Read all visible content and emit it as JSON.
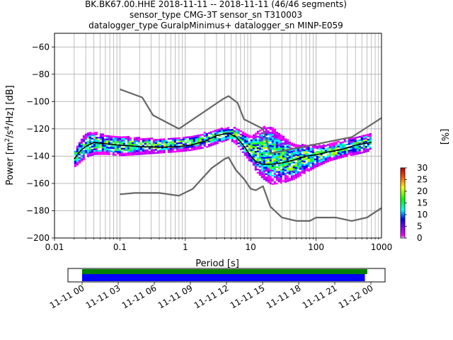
{
  "header": {
    "line1": "BK.BK67.00.HHE   2018-11-11 -- 2018-11-11  (46/46 segments)",
    "line2": "sensor_type CMG-3T sensor_sn T310003",
    "line3": "datalogger_type GuralpMinimus+ datalogger_sn MINP-E059"
  },
  "chart_data": [
    {
      "type": "heatmap",
      "title": "BK.BK67.00.HHE   2018-11-11 -- 2018-11-11  (46/46 segments)",
      "xlabel": "Period [s]",
      "ylabel": "Power [m²/s⁴/Hz] [dB]",
      "xscale": "log",
      "xlim": [
        0.01,
        1000
      ],
      "ylim": [
        -200,
        -50
      ],
      "xtick_labels": [
        "0.01",
        "0.1",
        "1",
        "10",
        "100",
        "1000"
      ],
      "ytick_labels": [
        "−200",
        "−180",
        "−160",
        "−140",
        "−120",
        "−100",
        "−80",
        "−60"
      ],
      "grid": true,
      "colorbar": {
        "label": "[%]",
        "range": [
          0,
          30
        ],
        "tick_labels": [
          "0",
          "5",
          "10",
          "15",
          "20",
          "25",
          "30"
        ]
      },
      "nlnm_curve": {
        "x": [
          0.1,
          0.17,
          0.4,
          0.8,
          1.3,
          2.5,
          4,
          4.6,
          5.9,
          8,
          10,
          12,
          15.4,
          20,
          30,
          50,
          80,
          100,
          200,
          350,
          600,
          1000
        ],
        "y": [
          -168,
          -167,
          -167,
          -169,
          -164,
          -149,
          -142,
          -141,
          -150,
          -157,
          -164,
          -165,
          -162,
          -177,
          -185,
          -187.5,
          -187.5,
          -185,
          -185,
          -187.5,
          -185,
          -178
        ]
      },
      "nhnm_curve": {
        "x": [
          0.1,
          0.22,
          0.32,
          0.8,
          3.8,
          4.6,
          6.3,
          7.9,
          15.4,
          20,
          354,
          1000
        ],
        "y": [
          -91,
          -97,
          -110,
          -120,
          -98,
          -96,
          -101,
          -113,
          -120,
          -138,
          -126,
          -112
        ]
      },
      "mode_curve": {
        "x": [
          0.02,
          0.025,
          0.03,
          0.04,
          0.06,
          0.1,
          0.2,
          0.4,
          0.8,
          1.2,
          2,
          3,
          4.5,
          6,
          8,
          10,
          12,
          15,
          20,
          30,
          45,
          70,
          100,
          150,
          250,
          400,
          700
        ],
        "y": [
          -142,
          -136,
          -133,
          -130,
          -131,
          -132,
          -133,
          -133.5,
          -133,
          -132,
          -129,
          -125,
          -123,
          -126,
          -133,
          -140,
          -144,
          -146,
          -146,
          -145,
          -143,
          -140,
          -139,
          -137,
          -135,
          -132,
          -130
        ]
      },
      "psd_band": {
        "x": [
          0.02,
          0.025,
          0.03,
          0.04,
          0.06,
          0.1,
          0.2,
          0.4,
          0.8,
          1.2,
          2,
          3,
          4.5,
          6,
          8,
          10,
          12,
          15,
          20,
          30,
          45,
          70,
          100,
          150,
          250,
          400,
          700
        ],
        "upper": [
          -135,
          -128,
          -123,
          -123,
          -125,
          -126,
          -127,
          -128,
          -127,
          -126,
          -123,
          -121,
          -119,
          -120,
          -124,
          -126,
          -123,
          -119,
          -119,
          -126,
          -132,
          -132,
          -133,
          -132,
          -129,
          -126,
          -124
        ],
        "lower": [
          -148,
          -144,
          -141,
          -139,
          -139,
          -140,
          -139,
          -138,
          -137,
          -136,
          -134,
          -131,
          -128,
          -132,
          -140,
          -146,
          -152,
          -157,
          -161,
          -160,
          -157,
          -152,
          -148,
          -144,
          -141,
          -139,
          -136
        ]
      }
    },
    {
      "type": "timeline",
      "tick_labels": [
        "11-11 00",
        "11-11 03",
        "11-11 06",
        "11-11 09",
        "11-11 12",
        "11-11 15",
        "11-11 18",
        "11-11 21",
        "11-12 00"
      ],
      "green_bar_hours": [
        0,
        23.7
      ],
      "blue_bar_hours": [
        0,
        23.5
      ],
      "colors": {
        "green": "#008000",
        "blue": "#0000ff"
      }
    }
  ]
}
